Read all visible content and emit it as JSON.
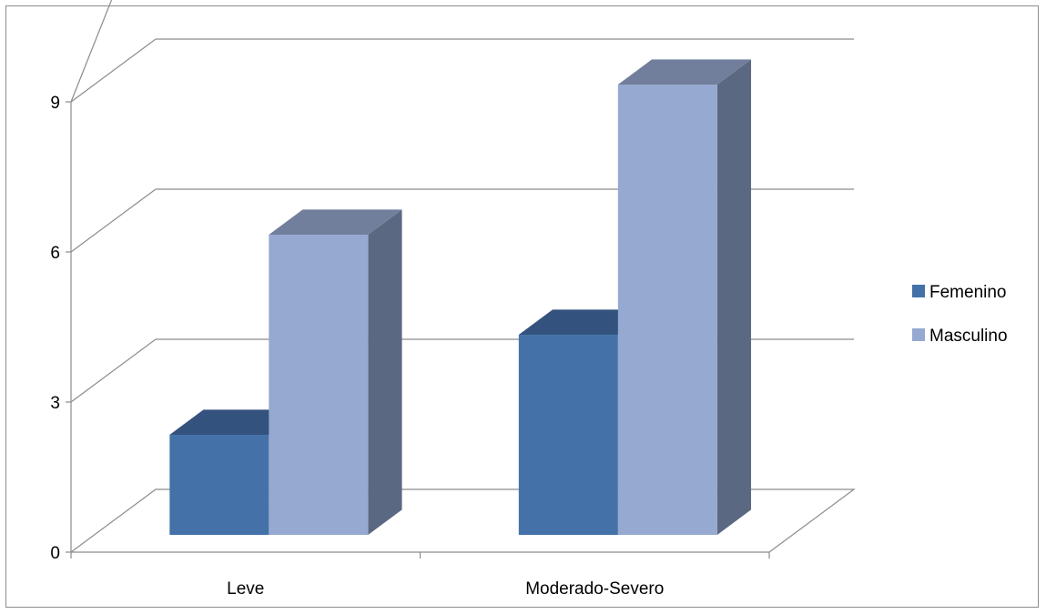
{
  "chart_data": {
    "type": "bar",
    "title": "",
    "xlabel": "",
    "ylabel": "",
    "categories": [
      "Leve",
      "Moderado-Severo"
    ],
    "series": [
      {
        "name": "Femenino",
        "values": [
          2,
          4
        ],
        "color": "#4472a8",
        "top_color": "#34527e",
        "side_color": "#3c5f8c"
      },
      {
        "name": "Masculino",
        "values": [
          6,
          9
        ],
        "color": "#95a9d1",
        "top_color": "#717f9c",
        "side_color": "#5b6882"
      }
    ],
    "ylim": [
      0,
      9
    ],
    "yticks": [
      0,
      3,
      6,
      9
    ],
    "grid": true,
    "legend_position": "right",
    "style": "3d-clustered-column"
  }
}
